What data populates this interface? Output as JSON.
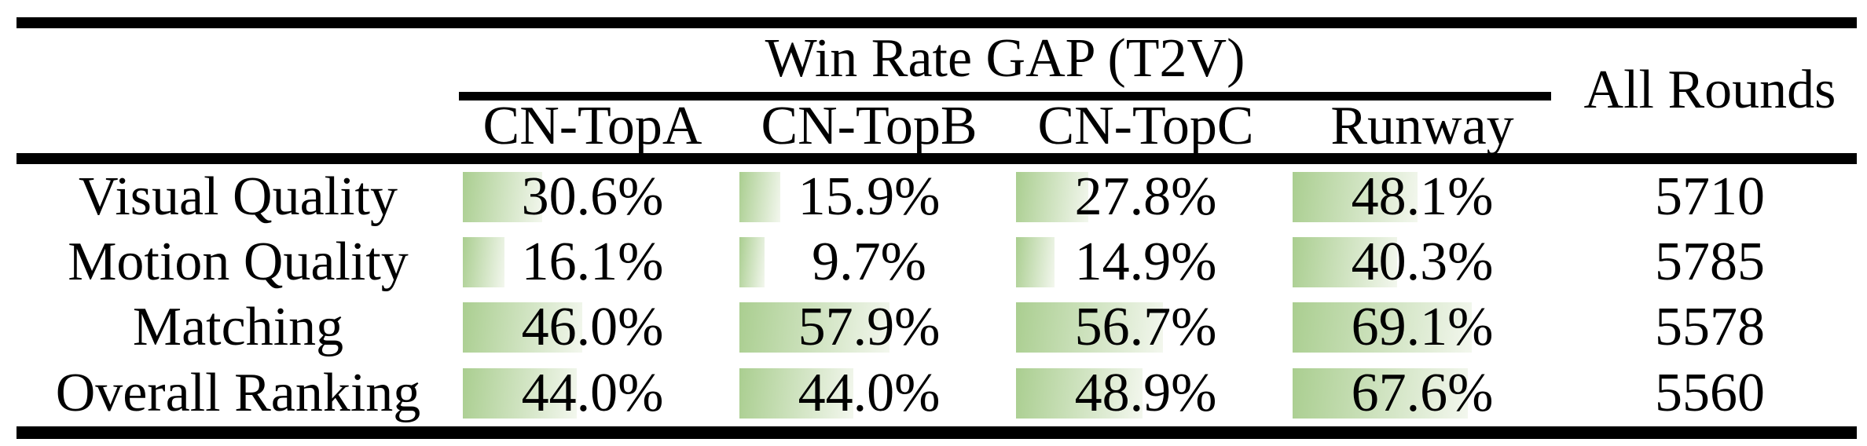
{
  "table": {
    "title": "Win Rate GAP (T2V)",
    "all_rounds_header": "All Rounds",
    "columns": [
      "CN-TopA",
      "CN-TopB",
      "CN-TopC",
      "Runway"
    ],
    "rows": [
      {
        "label": "Visual Quality",
        "values": [
          "30.6%",
          "15.9%",
          "27.8%",
          "48.1%"
        ],
        "bar_pcts": [
          30.6,
          15.9,
          27.8,
          48.1
        ],
        "all_rounds": "5710"
      },
      {
        "label": "Motion Quality",
        "values": [
          "16.1%",
          "9.7%",
          "14.9%",
          "40.3%"
        ],
        "bar_pcts": [
          16.1,
          9.7,
          14.9,
          40.3
        ],
        "all_rounds": "5785"
      },
      {
        "label": "Matching",
        "values": [
          "46.0%",
          "57.9%",
          "56.7%",
          "69.1%"
        ],
        "bar_pcts": [
          46.0,
          57.9,
          56.7,
          69.1
        ],
        "all_rounds": "5578"
      },
      {
        "label": "Overall Ranking",
        "values": [
          "44.0%",
          "44.0%",
          "48.9%",
          "67.6%"
        ],
        "bar_pcts": [
          44.0,
          44.0,
          48.9,
          67.6
        ],
        "all_rounds": "5560"
      }
    ],
    "colors": {
      "bar_gradient_start": "#aace90",
      "bar_gradient_end": "#f3f7ee",
      "rule_color": "#000000",
      "text_color": "#000000"
    }
  },
  "chart_data": {
    "type": "table",
    "title": "Win Rate GAP (T2V)",
    "columns": [
      "CN-TopA",
      "CN-TopB",
      "CN-TopC",
      "Runway",
      "All Rounds"
    ],
    "row_labels": [
      "Visual Quality",
      "Motion Quality",
      "Matching",
      "Overall Ranking"
    ],
    "win_rate_gap_pct": [
      [
        30.6,
        15.9,
        27.8,
        48.1
      ],
      [
        16.1,
        9.7,
        14.9,
        40.3
      ],
      [
        46.0,
        57.9,
        56.7,
        69.1
      ],
      [
        44.0,
        44.0,
        48.9,
        67.6
      ]
    ],
    "all_rounds": [
      5710,
      5785,
      5578,
      5560
    ],
    "notes": "Green data bars behind each percentage are proportional to the value (100% = full cell width)"
  }
}
